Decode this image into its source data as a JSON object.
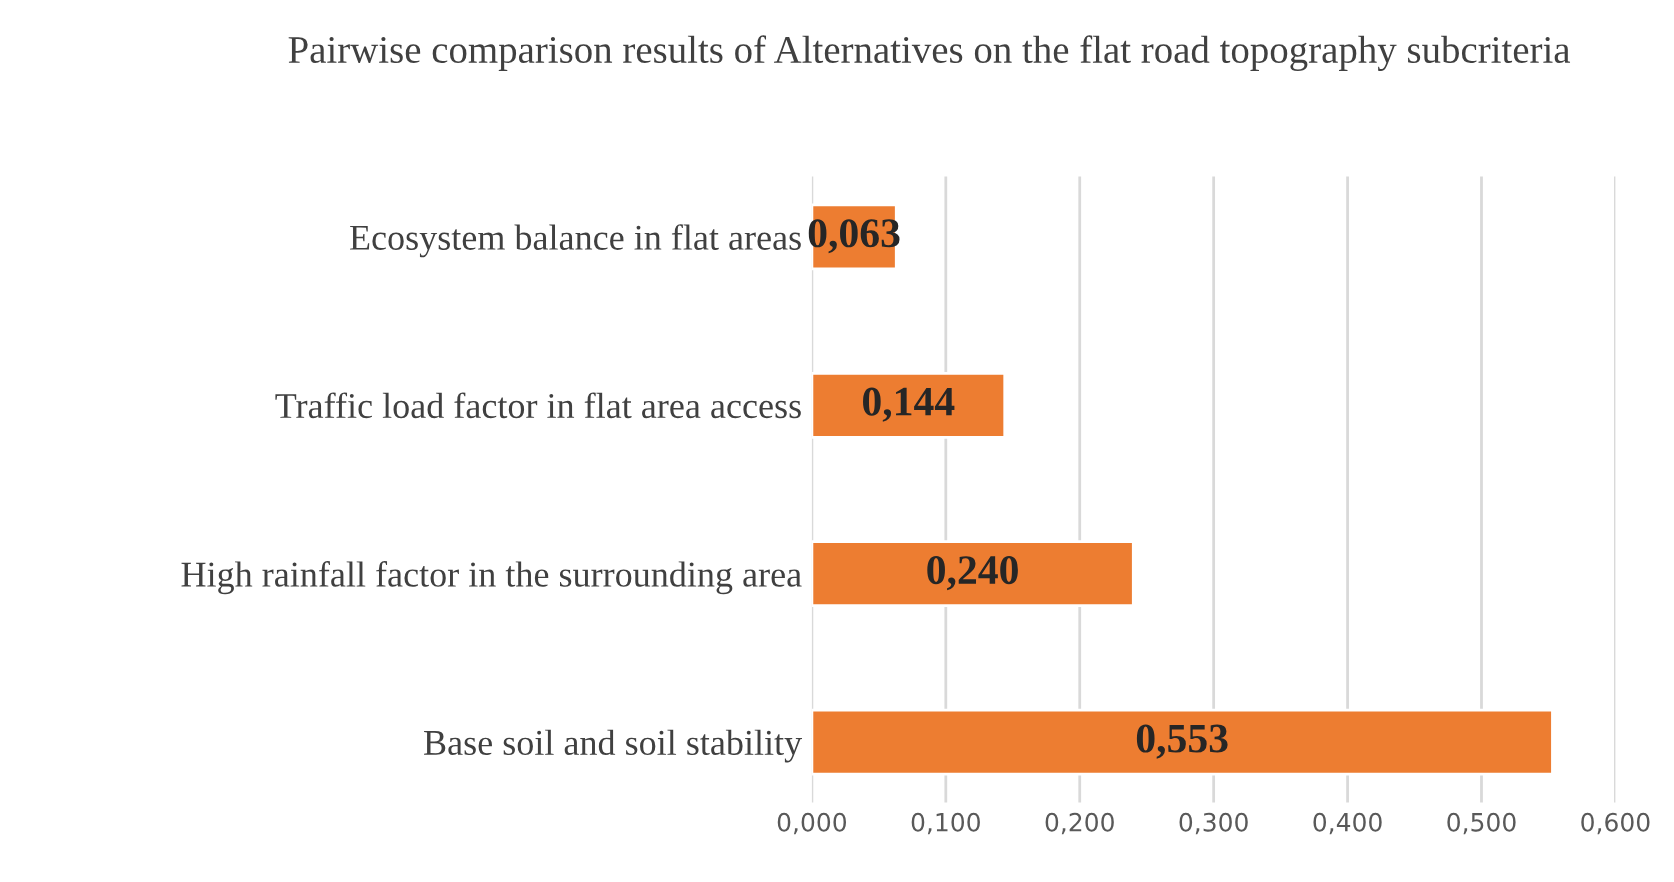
{
  "chart_data": {
    "type": "bar",
    "orientation": "horizontal",
    "title": "Pairwise comparison results of Alternatives on the flat road topography subcriteria",
    "categories": [
      "Ecosystem balance in flat areas",
      "Traffic load factor in flat area access",
      "High rainfall factor in the surrounding area",
      "Base soil and soil stability"
    ],
    "values": [
      0.063,
      0.144,
      0.24,
      0.553
    ],
    "value_labels": [
      "0,063",
      "0,144",
      "0,240",
      "0,553"
    ],
    "color": "#ed7d31",
    "xlim": [
      0,
      0.6
    ],
    "xticks": [
      {
        "value": 0,
        "label": "0,000"
      },
      {
        "value": 0.1,
        "label": "0,100"
      },
      {
        "value": 0.2,
        "label": "0,200"
      },
      {
        "value": 0.3,
        "label": "0,300"
      },
      {
        "value": 0.4,
        "label": "0,400"
      },
      {
        "value": 0.5,
        "label": "0,500"
      },
      {
        "value": 0.6,
        "label": "0,600"
      }
    ],
    "grid": "x",
    "legend": false
  }
}
